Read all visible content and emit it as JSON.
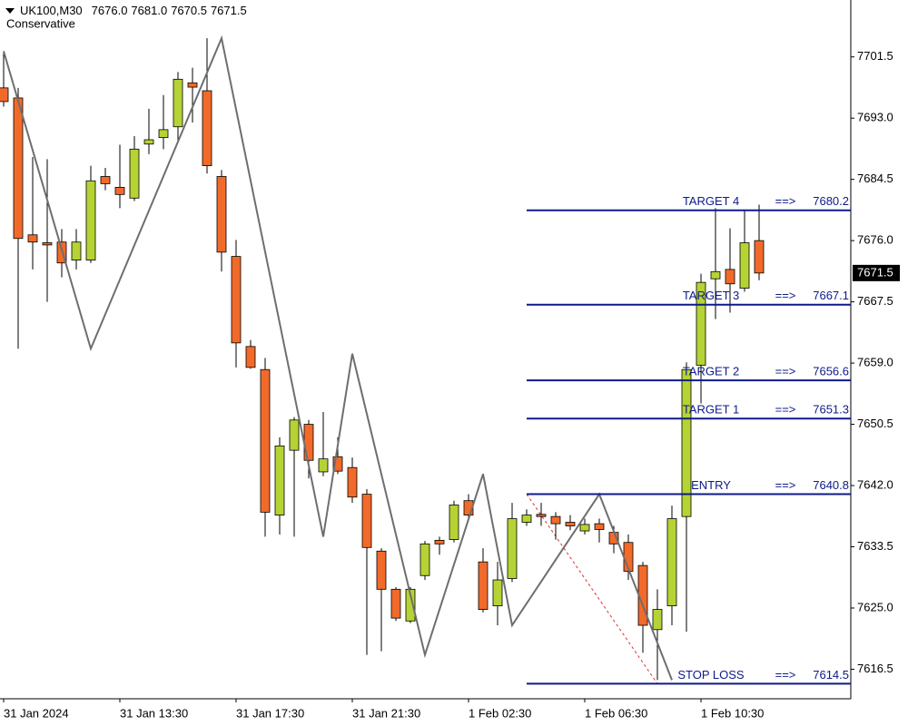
{
  "chart_data": {
    "type": "candlestick",
    "title": "UK100,M30",
    "ohlc_labels": [
      "7676.0",
      "7681.0",
      "7670.5",
      "7671.5"
    ],
    "subtitle": "Conservative",
    "categories": [
      "31 Jan 2024",
      null,
      null,
      null,
      null,
      null,
      null,
      null,
      "31 Jan 13:30",
      null,
      null,
      null,
      null,
      null,
      null,
      null,
      "31 Jan 17:30",
      null,
      null,
      null,
      null,
      null,
      null,
      null,
      "31 Jan 21:30",
      null,
      null,
      null,
      null,
      null,
      null,
      null,
      "1 Feb 02:30",
      null,
      null,
      null,
      null,
      null,
      null,
      null,
      "1 Feb 06:30",
      null,
      null,
      null,
      null,
      null,
      null,
      null,
      "1 Feb 10:30",
      null,
      null,
      null,
      null
    ],
    "open": [
      7697.2,
      7695.8,
      7676.8,
      7675.7,
      7675.8,
      7673.3,
      7673.3,
      7684.9,
      7683.4,
      7681.9,
      7689.4,
      7690.3,
      7691.8,
      7697.9,
      7696.8,
      7684.9,
      7673.8,
      7661.3,
      7658.1,
      7637.9,
      7646.9,
      7650.5,
      7643.9,
      7646.0,
      7644.5,
      7640.8,
      7632.9,
      7627.6,
      7623.2,
      7629.5,
      7634.4,
      7634.5,
      7639.9,
      7631.4,
      7625.3,
      7629.1,
      7636.9,
      7638.0,
      7637.7,
      7636.9,
      7635.7,
      7636.7,
      7635.5,
      7634.1,
      7630.9,
      7622.0,
      7625.3,
      7637.7,
      7658.7,
      7670.7,
      7672.0,
      7669.4,
      7676.0
    ],
    "high": [
      7702.3,
      7697.2,
      7687.6,
      7687.3,
      7677.6,
      7677.6,
      7686.4,
      7686.1,
      7689.3,
      7690.5,
      7694.3,
      7696.2,
      7699.4,
      7700.0,
      7704.1,
      7685.8,
      7676.1,
      7662.2,
      7659.7,
      7648.7,
      7651.5,
      7651.1,
      7652.2,
      7648.7,
      7645.9,
      7641.5,
      7633.3,
      7627.9,
      7627.9,
      7634.3,
      7634.9,
      7639.9,
      7640.8,
      7633.3,
      7631.4,
      7639.6,
      7638.7,
      7639.6,
      7638.3,
      7637.9,
      7637.4,
      7637.4,
      7636.4,
      7635.2,
      7631.4,
      7627.6,
      7639.2,
      7659.1,
      7671.4,
      7680.5,
      7677.7,
      7680.2,
      7681.0
    ],
    "low": [
      7694.6,
      7661.0,
      7672.0,
      7667.5,
      7670.9,
      7672.0,
      7672.9,
      7683.0,
      7680.5,
      7681.5,
      7688.0,
      7688.7,
      7689.9,
      7692.4,
      7685.3,
      7671.7,
      7658.4,
      7658.2,
      7634.9,
      7635.2,
      7634.9,
      7643.0,
      7643.3,
      7643.6,
      7639.6,
      7618.5,
      7619.0,
      7623.2,
      7622.9,
      7628.9,
      7632.4,
      7634.1,
      7637.4,
      7624.4,
      7622.6,
      7628.6,
      7636.4,
      7636.4,
      7634.5,
      7635.8,
      7635.2,
      7634.1,
      7632.6,
      7628.9,
      7618.8,
      7615.0,
      7622.6,
      7621.7,
      7653.4,
      7665.1,
      7666.0,
      7668.9,
      7670.5
    ],
    "close": [
      7695.3,
      7676.3,
      7675.8,
      7675.4,
      7672.9,
      7675.8,
      7684.3,
      7683.9,
      7682.4,
      7688.7,
      7690.0,
      7691.4,
      7698.4,
      7697.3,
      7686.4,
      7674.4,
      7661.8,
      7658.4,
      7638.3,
      7647.5,
      7651.1,
      7645.5,
      7645.7,
      7644.0,
      7640.4,
      7633.4,
      7627.6,
      7623.6,
      7627.6,
      7633.9,
      7633.9,
      7639.3,
      7637.9,
      7624.8,
      7628.9,
      7637.4,
      7637.9,
      7637.7,
      7636.7,
      7636.4,
      7636.6,
      7635.9,
      7633.9,
      7630.1,
      7622.6,
      7624.8,
      7637.4,
      7658.1,
      7670.2,
      7671.7,
      7670.0,
      7675.7,
      7671.5
    ],
    "up_color": "#b5d334",
    "down_color": "#f26a2a",
    "zigzag": {
      "color": "#6e6e6e",
      "x": [
        0,
        6,
        15,
        22,
        24,
        29,
        33,
        35,
        41,
        46
      ],
      "values": [
        7702.3,
        7661.0,
        7704.1,
        7634.9,
        7660.3,
        7618.5,
        7643.6,
        7622.6,
        7640.8,
        7615.0
      ]
    },
    "dashed_line": {
      "color": "#e03030",
      "x": [
        36,
        45
      ],
      "values": [
        7640.8,
        7614.5
      ]
    },
    "levels_color": "#0d1a8a",
    "levels_start": 36,
    "levels": [
      {
        "name": "TARGET 4",
        "arrow": "==>",
        "value": 7680.2
      },
      {
        "name": "TARGET 3",
        "arrow": "==>",
        "value": 7667.1
      },
      {
        "name": "TARGET 2",
        "arrow": "==>",
        "value": 7656.6
      },
      {
        "name": "TARGET 1",
        "arrow": "==>",
        "value": 7651.3
      },
      {
        "name": "ENTRY",
        "arrow": "==>",
        "value": 7640.8
      },
      {
        "name": "STOP LOSS",
        "arrow": "==>",
        "value": 7614.5
      }
    ],
    "ylim": [
      7612.4,
      7709.4
    ],
    "yticks": [
      7616.5,
      {
        "value": 7625,
        "label": "7625.0"
      },
      7633.5,
      {
        "value": 7642,
        "label": "7642.0"
      },
      7650.5,
      {
        "value": 7659,
        "label": "7659.0"
      },
      7667.5,
      {
        "value": 7676,
        "label": "7676.0"
      },
      7684.5,
      {
        "value": 7693,
        "label": "7693.0"
      },
      7701.5
    ]
  }
}
